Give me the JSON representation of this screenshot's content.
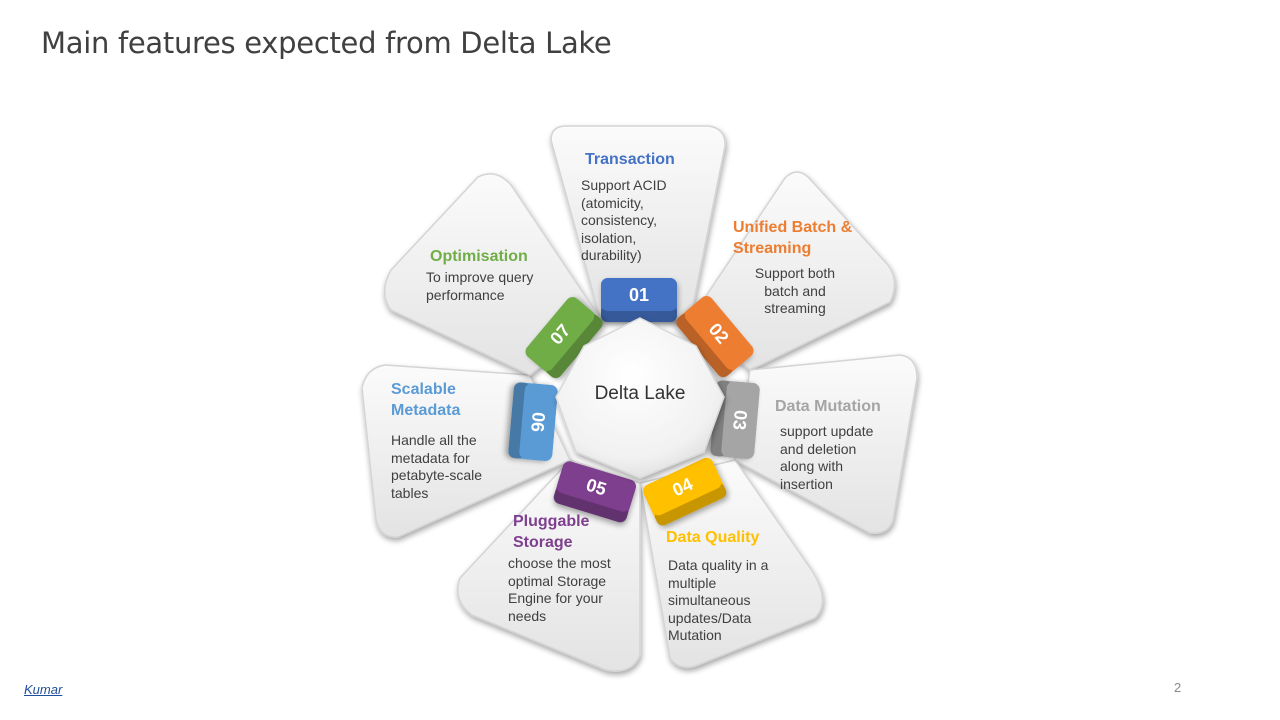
{
  "slide": {
    "title": "Main features expected from Delta Lake",
    "author": "Kumar",
    "page_number": "2"
  },
  "center": {
    "label": "Delta Lake"
  },
  "features": [
    {
      "number": "01",
      "title": "Transaction",
      "description": "Support ACID (atomicity, consistency, isolation, durability)",
      "color": "#4472C4"
    },
    {
      "number": "02",
      "title": "Unified  Batch & Streaming",
      "description": "Support both batch and streaming",
      "color": "#ED7D31"
    },
    {
      "number": "03",
      "title": "Data Mutation",
      "description": "support update and deletion along with insertion",
      "color": "#A5A5A5"
    },
    {
      "number": "04",
      "title": "Data Quality",
      "description": "Data quality in a multiple simultaneous updates/Data Mutation",
      "color": "#FFC000"
    },
    {
      "number": "05",
      "title": "Pluggable Storage",
      "description": "choose the most optimal Storage Engine for your needs",
      "color": "#7E3F8E"
    },
    {
      "number": "06",
      "title": "Scalable Metadata",
      "description": "Handle all the metadata for petabyte-scale tables",
      "color": "#5B9BD5"
    },
    {
      "number": "07",
      "title": "Optimisation",
      "description": "To improve query performance",
      "color": "#70AD47"
    }
  ]
}
